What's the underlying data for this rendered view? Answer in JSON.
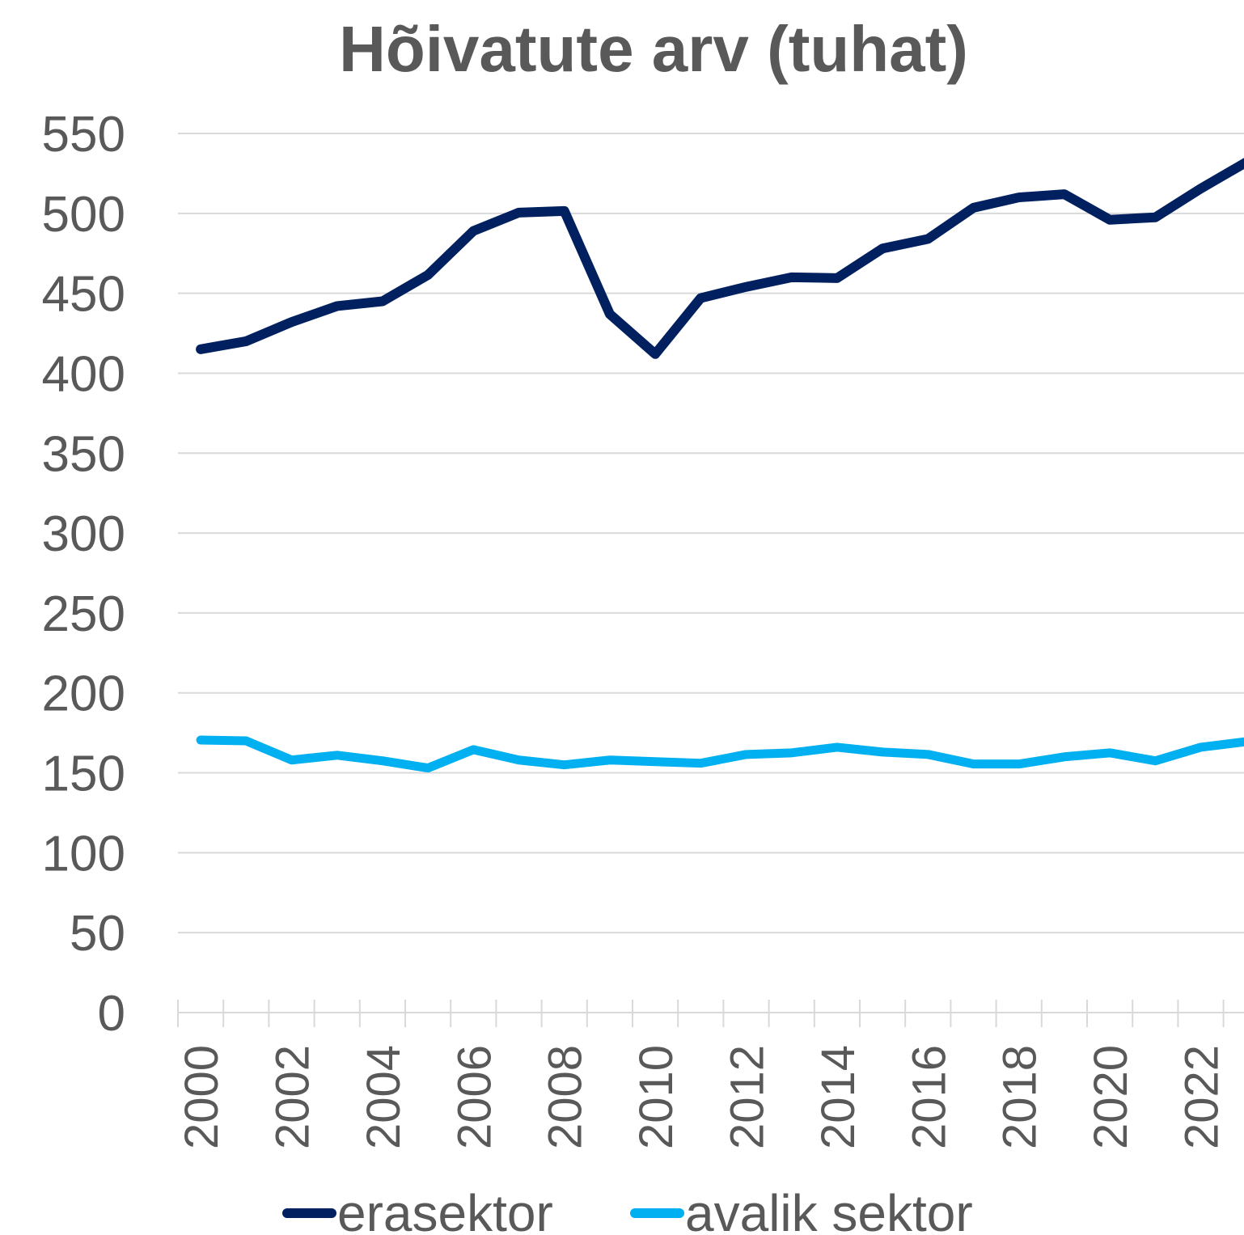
{
  "chart_data": {
    "type": "line",
    "title": "Hõivatute arv (tuhat)",
    "categories": [
      "2000",
      null,
      "2002",
      null,
      "2004",
      null,
      "2006",
      null,
      "2008",
      null,
      "2010",
      null,
      "2012",
      null,
      "2014",
      null,
      "2016",
      null,
      "2018",
      null,
      "2020",
      null,
      "2022",
      null
    ],
    "series": [
      {
        "name": "erasektor",
        "color": "#002060",
        "values": [
          415,
          420,
          432,
          442,
          445,
          461.5,
          489,
          500.5,
          501.5,
          437,
          412,
          447,
          454,
          460,
          459.5,
          478,
          484,
          503.5,
          510,
          512,
          496,
          497.5,
          515.5,
          532
        ]
      },
      {
        "name": "avalik sektor",
        "color": "#00b0f0",
        "values": [
          170.5,
          170,
          158,
          161,
          157.5,
          153,
          164.5,
          158,
          155,
          158,
          157,
          156,
          161.5,
          162.5,
          166,
          163,
          161.5,
          155.5,
          155.5,
          160,
          162.5,
          157.5,
          166,
          169.5
        ]
      }
    ],
    "ylim": [
      0,
      550
    ],
    "yticks": [
      0,
      50,
      100,
      150,
      200,
      250,
      300,
      350,
      400,
      450,
      500,
      550
    ],
    "grid": true,
    "legend": "bottom"
  }
}
